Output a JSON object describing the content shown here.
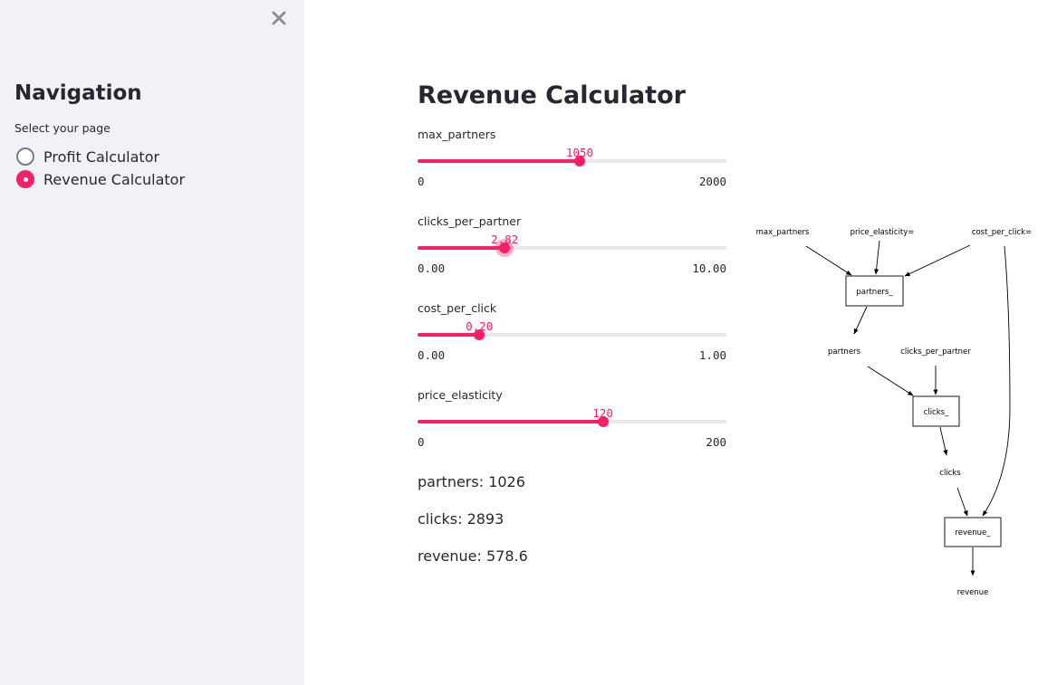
{
  "sidebar": {
    "title": "Navigation",
    "radio_label": "Select your page",
    "options": [
      {
        "label": "Profit Calculator",
        "selected": false
      },
      {
        "label": "Revenue Calculator",
        "selected": true
      }
    ],
    "close_icon": "close-icon"
  },
  "main": {
    "title": "Revenue Calculator",
    "sliders": [
      {
        "label": "max_partners",
        "value": "1050",
        "min": "0",
        "max": "2000",
        "fraction": 0.525
      },
      {
        "label": "clicks_per_partner",
        "value": "2.82",
        "min": "0.00",
        "max": "10.00",
        "fraction": 0.282
      },
      {
        "label": "cost_per_click",
        "value": "0.20",
        "min": "0.00",
        "max": "1.00",
        "fraction": 0.2
      },
      {
        "label": "price_elasticity",
        "value": "120",
        "min": "0",
        "max": "200",
        "fraction": 0.6
      }
    ],
    "results": [
      "partners: 1026",
      "clicks: 2893",
      "revenue: 578.6"
    ]
  },
  "graph": {
    "nodes": {
      "max_partners": "max_partners",
      "price_elasticity": "price_elasticity=",
      "cost_per_click": "cost_per_click=",
      "partners_box": "partners_",
      "partners": "partners",
      "clicks_per_partner": "clicks_per_partner",
      "clicks_box": "clicks_",
      "clicks": "clicks",
      "revenue_box": "revenue_",
      "revenue": "revenue"
    }
  },
  "colors": {
    "accent": "#f51f6a",
    "sidebar_bg": "#f0f2f6",
    "text": "#262730",
    "track": "#e6e8ec"
  }
}
